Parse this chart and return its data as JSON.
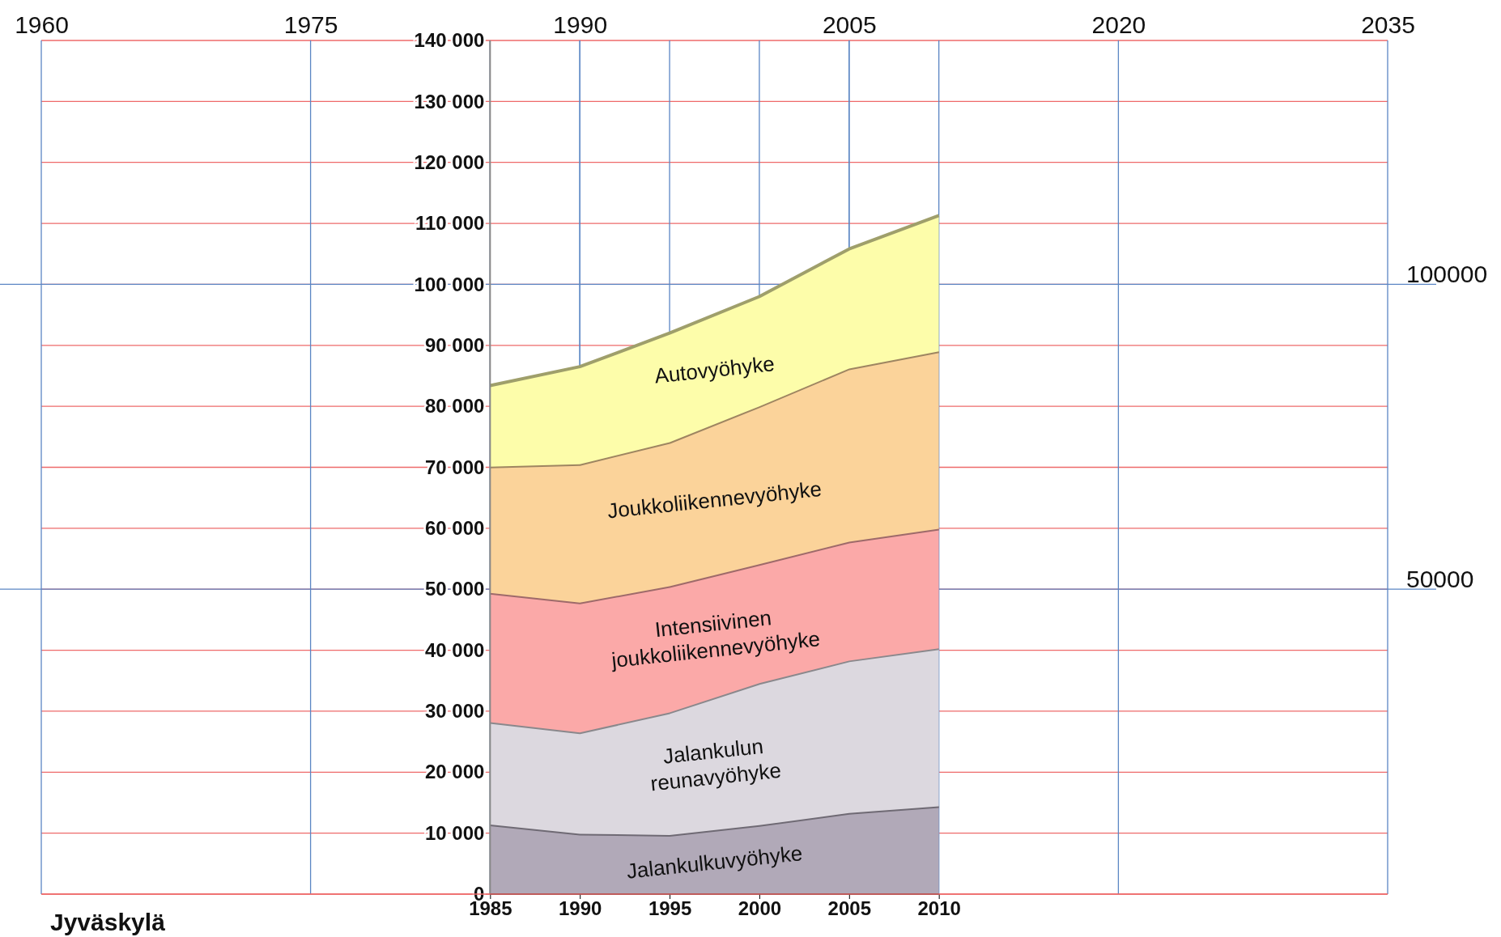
{
  "chart_data": {
    "type": "area",
    "stacked": true,
    "title": "Jyväskylä",
    "x": [
      1985,
      1990,
      1995,
      2000,
      2005,
      2010
    ],
    "series": [
      {
        "name": "Jalankulkuvyöhyke",
        "color": "#b1a9b8",
        "values": [
          11400,
          9900,
          9700,
          11300,
          13300,
          14400
        ]
      },
      {
        "name": "Jalankulun reunavyöhyke",
        "color": "#dcd8df",
        "values": [
          16800,
          16600,
          20100,
          23300,
          25000,
          25900
        ]
      },
      {
        "name": "Intensiivinen joukkoliikennevyöhyke",
        "color": "#fba9a8",
        "values": [
          21200,
          21300,
          20700,
          19500,
          19500,
          19600
        ]
      },
      {
        "name": "Joukkoliikennevyöhyke",
        "color": "#fbd39a",
        "values": [
          20700,
          22700,
          23600,
          25900,
          28400,
          29100
        ]
      },
      {
        "name": "Autovyöhyke",
        "color": "#fdfdaa",
        "values": [
          13300,
          16000,
          17900,
          18000,
          19600,
          22300
        ]
      }
    ],
    "xlim": [
      1960,
      2035
    ],
    "xticks": [
      1985,
      1990,
      1995,
      2000,
      2005,
      2010
    ],
    "x2lim": [
      1960,
      2035
    ],
    "x2ticks": [
      1960,
      1975,
      1990,
      2005,
      2020,
      2035
    ],
    "ylim": [
      0,
      140000
    ],
    "yticks": [
      0,
      {
        "value": 10000,
        "label": "10 000"
      },
      {
        "value": 20000,
        "label": "20 000"
      },
      {
        "value": 30000,
        "label": "30 000"
      },
      {
        "value": 40000,
        "label": "40 000"
      },
      {
        "value": 50000,
        "label": "50 000"
      },
      {
        "value": 60000,
        "label": "60 000"
      },
      {
        "value": 70000,
        "label": "70 000"
      },
      {
        "value": 80000,
        "label": "80 000"
      },
      {
        "value": 90000,
        "label": "90 000"
      },
      {
        "value": 100000,
        "label": "100 000"
      },
      {
        "value": 110000,
        "label": "110 000"
      },
      {
        "value": 120000,
        "label": "120 000"
      },
      {
        "value": 130000,
        "label": "130 000"
      },
      {
        "value": 140000,
        "label": "140 000"
      }
    ],
    "y2lim": [
      0,
      140000
    ],
    "y2ticks": [
      50000,
      100000
    ],
    "grid": true,
    "legend": false
  }
}
